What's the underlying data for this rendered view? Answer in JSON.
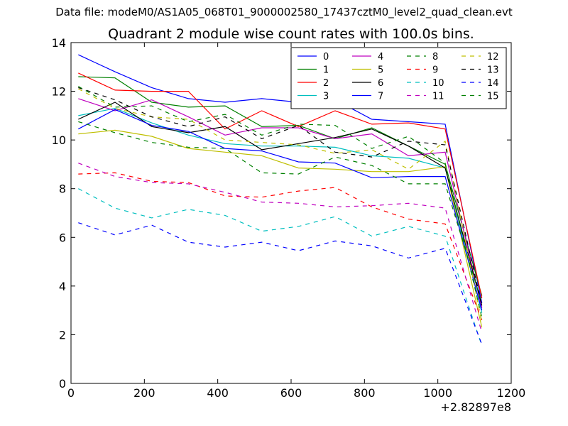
{
  "suptitle": "Data file: modeM0/AS1A05_068T01_9000002580_17437cztM0_level2_quad_clean.evt",
  "chart_data": {
    "type": "line",
    "title": "Quadrant 2 module wise count rates with 100.0s bins.",
    "xlabel": "",
    "ylabel": "",
    "x_offset_label": "+2.82897e8",
    "xlim": [
      0,
      1200
    ],
    "ylim": [
      0,
      14
    ],
    "xticks": [
      0,
      200,
      400,
      600,
      800,
      1000,
      1200
    ],
    "yticks": [
      0,
      2,
      4,
      6,
      8,
      10,
      12,
      14
    ],
    "legend_position": "top-right",
    "legend_columns": 4,
    "x": [
      20,
      120,
      220,
      320,
      420,
      520,
      620,
      720,
      820,
      920,
      1020,
      1120
    ],
    "series": [
      {
        "name": "0",
        "color": "#0000ff",
        "dash": "solid",
        "values": [
          13.5,
          12.8,
          12.15,
          11.7,
          11.55,
          11.7,
          11.55,
          11.65,
          10.85,
          10.75,
          10.65,
          3.3
        ]
      },
      {
        "name": "1",
        "color": "#008000",
        "dash": "solid",
        "values": [
          12.6,
          12.55,
          11.55,
          11.35,
          11.4,
          10.55,
          10.6,
          10.05,
          10.5,
          9.75,
          9.0,
          3.6
        ]
      },
      {
        "name": "2",
        "color": "#ff0000",
        "dash": "solid",
        "values": [
          12.75,
          12.05,
          12.0,
          12.0,
          10.45,
          11.2,
          10.55,
          11.2,
          10.65,
          10.7,
          10.45,
          3.5
        ]
      },
      {
        "name": "3",
        "color": "#00bfbf",
        "dash": "solid",
        "values": [
          11.0,
          11.3,
          10.7,
          10.2,
          9.85,
          9.75,
          9.75,
          9.7,
          9.35,
          9.25,
          8.85,
          2.9
        ]
      },
      {
        "name": "4",
        "color": "#bf00bf",
        "dash": "solid",
        "values": [
          11.7,
          11.2,
          11.65,
          10.95,
          10.2,
          10.5,
          10.5,
          10.05,
          10.25,
          9.35,
          9.5,
          3.1
        ]
      },
      {
        "name": "5",
        "color": "#bfbf00",
        "dash": "solid",
        "values": [
          10.25,
          10.4,
          10.15,
          9.65,
          9.5,
          9.35,
          8.85,
          8.8,
          8.7,
          8.7,
          8.9,
          2.3
        ]
      },
      {
        "name": "6",
        "color": "#000000",
        "dash": "solid",
        "values": [
          10.85,
          11.55,
          10.55,
          10.3,
          10.55,
          9.6,
          9.85,
          10.1,
          10.45,
          9.75,
          8.85,
          3.2
        ]
      },
      {
        "name": "7",
        "color": "#0000ff",
        "dash": "solid",
        "values": [
          10.45,
          11.25,
          10.6,
          10.35,
          9.65,
          9.55,
          9.1,
          9.05,
          8.45,
          8.5,
          8.5,
          3.0
        ]
      },
      {
        "name": "8",
        "color": "#008000",
        "dash": "dashed",
        "values": [
          10.75,
          10.3,
          9.9,
          9.7,
          9.65,
          8.65,
          8.6,
          9.3,
          8.95,
          8.2,
          8.2,
          3.3
        ]
      },
      {
        "name": "9",
        "color": "#ff0000",
        "dash": "dashed",
        "values": [
          8.6,
          8.65,
          8.3,
          8.25,
          7.7,
          7.65,
          7.9,
          8.05,
          7.25,
          6.75,
          6.55,
          2.6
        ]
      },
      {
        "name": "10",
        "color": "#00bfbf",
        "dash": "dashed",
        "values": [
          8.0,
          7.2,
          6.8,
          7.15,
          6.9,
          6.25,
          6.45,
          6.85,
          6.05,
          6.45,
          6.05,
          1.55
        ]
      },
      {
        "name": "11",
        "color": "#bf00bf",
        "dash": "dashed",
        "values": [
          9.05,
          8.5,
          8.25,
          8.2,
          7.85,
          7.45,
          7.4,
          7.25,
          7.3,
          7.4,
          7.2,
          2.1
        ]
      },
      {
        "name": "12",
        "color": "#bfbf00",
        "dash": "dashed",
        "values": [
          12.1,
          11.3,
          10.95,
          10.85,
          10.0,
          9.9,
          9.8,
          9.45,
          9.6,
          8.8,
          9.95,
          2.5
        ]
      },
      {
        "name": "13",
        "color": "#000000",
        "dash": "dashed",
        "values": [
          12.15,
          11.65,
          10.95,
          10.55,
          10.95,
          10.05,
          10.6,
          9.5,
          9.3,
          9.95,
          9.8,
          3.2
        ]
      },
      {
        "name": "14",
        "color": "#0000ff",
        "dash": "dashed",
        "values": [
          6.6,
          6.1,
          6.5,
          5.8,
          5.6,
          5.8,
          5.45,
          5.85,
          5.65,
          5.15,
          5.55,
          1.6
        ]
      },
      {
        "name": "15",
        "color": "#008000",
        "dash": "dashed",
        "values": [
          12.2,
          11.35,
          11.4,
          10.75,
          11.05,
          10.2,
          10.65,
          10.6,
          9.65,
          10.15,
          9.05,
          2.7
        ]
      }
    ]
  }
}
